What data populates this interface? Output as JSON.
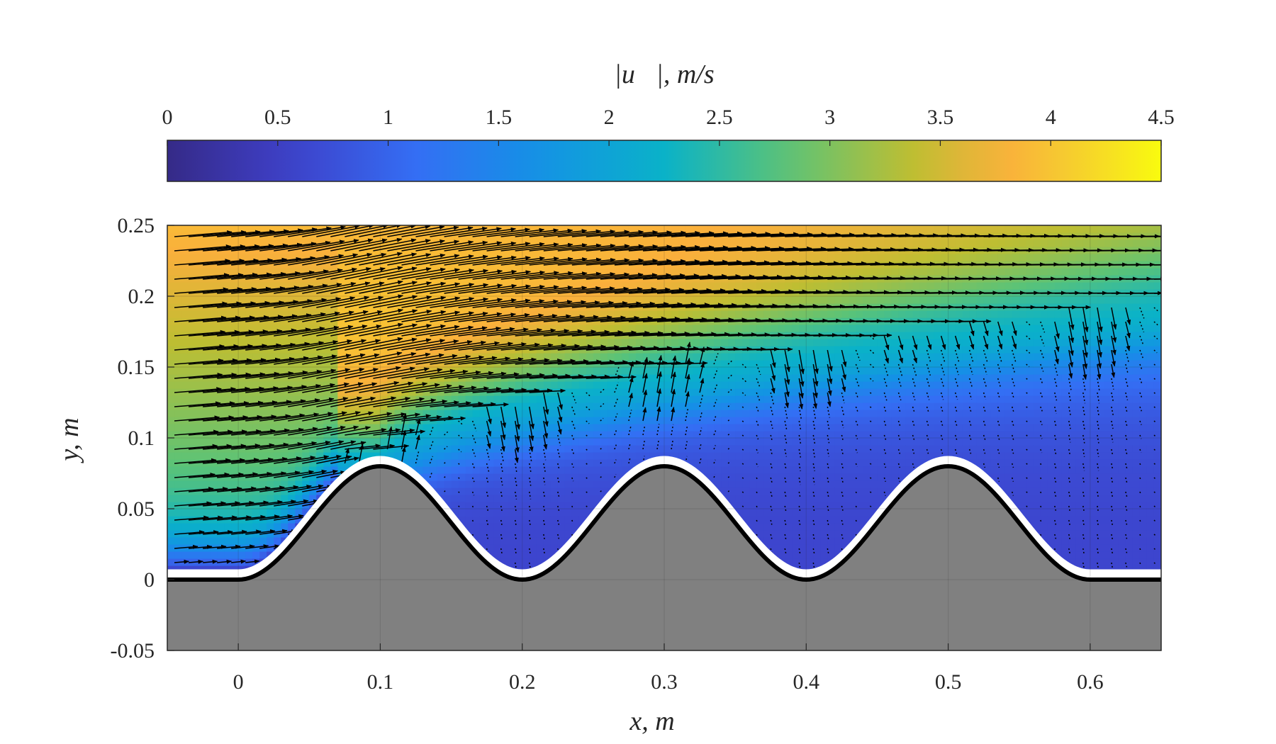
{
  "chart_data": {
    "type": "heatmap",
    "title": "",
    "colorbar": {
      "label": "|u⃗|,  m/s",
      "ticks": [
        "0",
        "0.5",
        "1",
        "1.5",
        "2",
        "2.5",
        "3",
        "3.5",
        "4",
        "4.5"
      ],
      "range": [
        0,
        4.5
      ],
      "colormap": "parula",
      "placement": "top"
    },
    "xlabel": "x,  m",
    "ylabel": "y,  m",
    "xlim": [
      -0.05,
      0.65
    ],
    "ylim": [
      -0.05,
      0.25
    ],
    "xticks": [
      "0",
      "0.1",
      "0.2",
      "0.3",
      "0.4",
      "0.5",
      "0.6"
    ],
    "yticks": [
      "-0.05",
      "0",
      "0.05",
      "0.1",
      "0.15",
      "0.2",
      "0.25"
    ],
    "grid": true,
    "bed_profile": {
      "shape": "three sinusoidal bumps on flat bed",
      "crest_x": [
        0.1,
        0.3,
        0.5
      ],
      "trough_x": [
        0.2,
        0.4
      ],
      "crest_height": 0.08,
      "bed_start_x": 0.0,
      "bed_end_x": 0.6,
      "fill_color": "#7f7f7f",
      "outline_color": "#000000"
    },
    "velocity_field": {
      "free_stream_speed": 3.9,
      "recirculation_speed": 0.6,
      "shear_layer_start_x": 0.1,
      "shear_layer_y_at_start": 0.09,
      "shear_layer_y_at_end": 0.2,
      "vortex_core": [
        0.62,
        0.1
      ],
      "vector_color": "#000000"
    }
  }
}
